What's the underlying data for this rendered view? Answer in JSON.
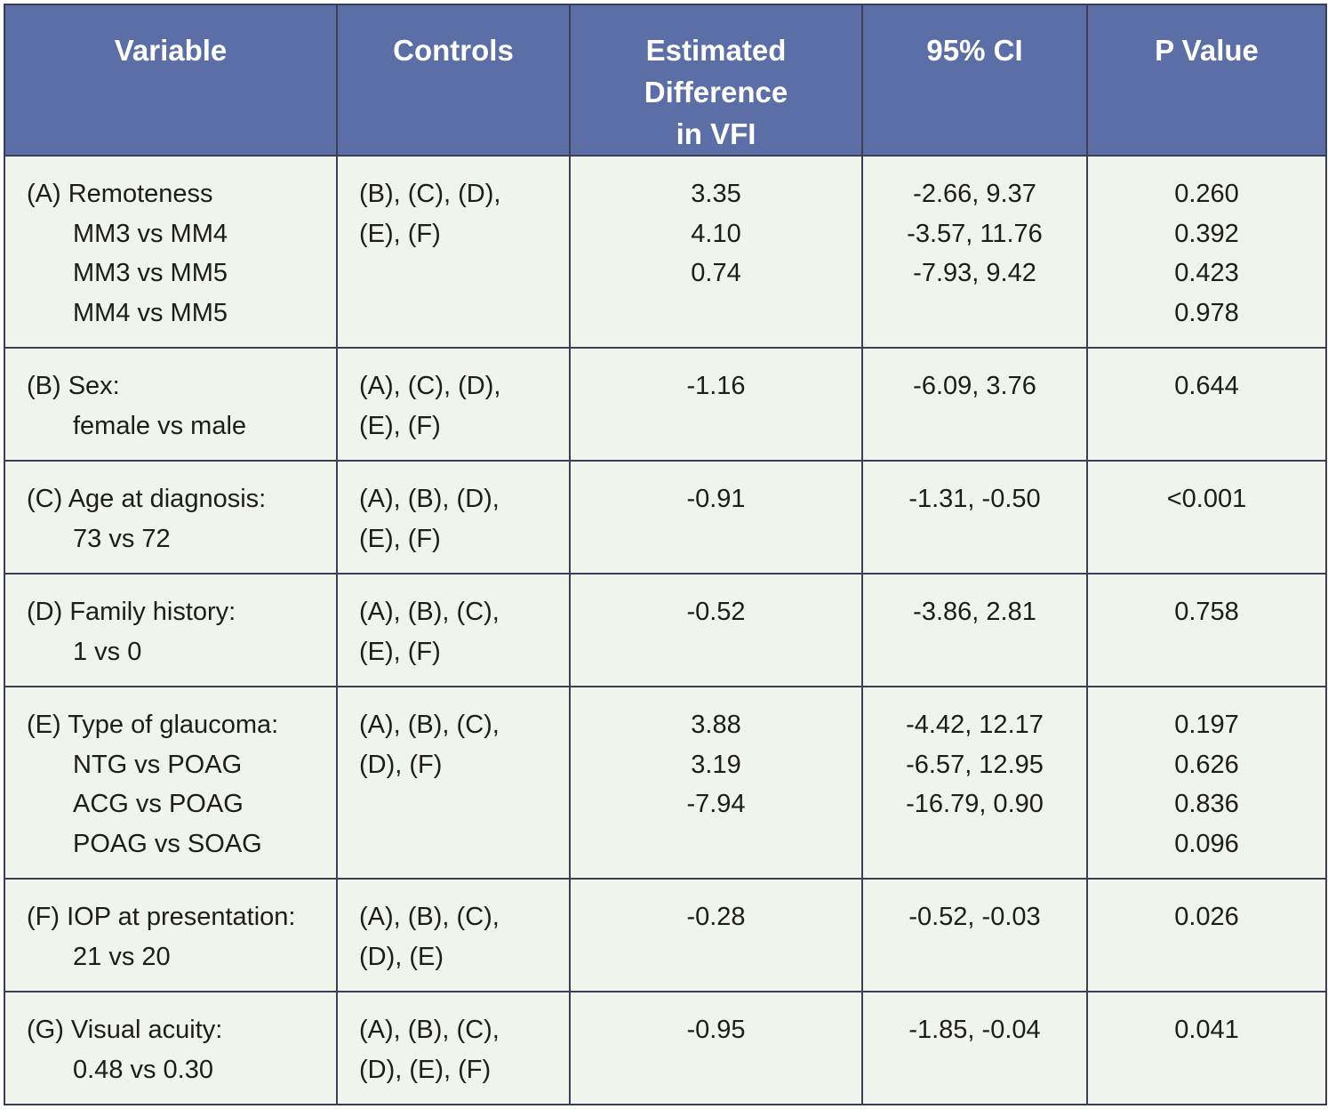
{
  "headers": {
    "variable": "Variable",
    "controls": "Controls",
    "estimated": [
      "Estimated",
      "Difference",
      "in VFI"
    ],
    "ci": "95% CI",
    "pvalue": "P Value"
  },
  "rows": [
    {
      "label": "(A) Remoteness",
      "subs": [
        "MM3 vs MM4",
        "MM3 vs MM5",
        "MM4 vs MM5"
      ],
      "controls": [
        "(B), (C), (D),",
        "(E), (F)"
      ],
      "estimates": [
        "3.35",
        "4.10",
        "0.74"
      ],
      "cis": [
        "-2.66, 9.37",
        "-3.57, 11.76",
        "-7.93, 9.42"
      ],
      "pvalues": [
        "0.260",
        "0.392",
        "0.423",
        "0.978"
      ]
    },
    {
      "label": "(B) Sex:",
      "subs": [
        "female vs male"
      ],
      "controls": [
        "(A), (C), (D),",
        "(E), (F)"
      ],
      "estimates": [
        "-1.16"
      ],
      "cis": [
        "-6.09, 3.76"
      ],
      "pvalues": [
        "0.644"
      ]
    },
    {
      "label": "(C) Age at diagnosis:",
      "subs": [
        "73 vs 72"
      ],
      "controls": [
        "(A), (B), (D),",
        "(E), (F)"
      ],
      "estimates": [
        "-0.91"
      ],
      "cis": [
        "-1.31, -0.50"
      ],
      "pvalues": [
        "<0.001"
      ]
    },
    {
      "label": "(D) Family history:",
      "subs": [
        "1 vs 0"
      ],
      "controls": [
        "(A), (B), (C),",
        "(E), (F)"
      ],
      "estimates": [
        "-0.52"
      ],
      "cis": [
        "-3.86, 2.81"
      ],
      "pvalues": [
        "0.758"
      ]
    },
    {
      "label": "(E) Type of glaucoma:",
      "subs": [
        "NTG vs POAG",
        "ACG vs POAG",
        "POAG vs SOAG"
      ],
      "controls": [
        "(A), (B), (C),",
        "(D), (F)"
      ],
      "estimates": [
        "3.88",
        "3.19",
        "-7.94"
      ],
      "cis": [
        "-4.42, 12.17",
        "-6.57, 12.95",
        "-16.79, 0.90"
      ],
      "pvalues": [
        "0.197",
        "0.626",
        "0.836",
        "0.096"
      ]
    },
    {
      "label": "(F) IOP at presentation:",
      "subs": [
        "21 vs 20"
      ],
      "controls": [
        "(A), (B), (C),",
        "(D), (E)"
      ],
      "estimates": [
        "-0.28"
      ],
      "cis": [
        "-0.52, -0.03"
      ],
      "pvalues": [
        "0.026"
      ]
    },
    {
      "label": "(G) Visual acuity:",
      "subs": [
        "0.48 vs 0.30"
      ],
      "controls": [
        "(A), (B), (C),",
        "(D), (E), (F)"
      ],
      "estimates": [
        "-0.95"
      ],
      "cis": [
        "-1.85, -0.04"
      ],
      "pvalues": [
        "0.041"
      ]
    }
  ]
}
